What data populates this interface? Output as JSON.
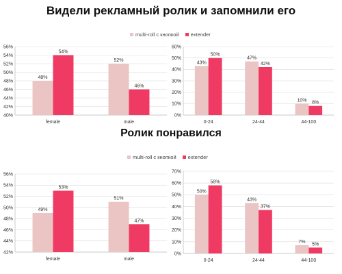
{
  "header": {
    "title": "Видели рекламный ролик и запомнили его",
    "title2": "Ролик понравился"
  },
  "legend": {
    "series1": "multi-roll с кнопкой",
    "series2": "extender",
    "color1": "#ebc4c4",
    "color2": "#ef3b63"
  },
  "chart_data": [
    {
      "type": "bar",
      "categories": [
        "female",
        "male"
      ],
      "series": [
        {
          "name": "multi-roll с кнопкой",
          "values": [
            48,
            52
          ],
          "labels": [
            "48%",
            "52%"
          ]
        },
        {
          "name": "extender",
          "values": [
            54,
            46
          ],
          "labels": [
            "54%",
            "46%"
          ]
        }
      ],
      "ylim": [
        40,
        56
      ],
      "yticks": [
        40,
        42,
        44,
        46,
        48,
        50,
        52,
        54,
        56
      ],
      "ytick_labels": [
        "40%",
        "42%",
        "44%",
        "46%",
        "48%",
        "50%",
        "52%",
        "54%",
        "56%"
      ],
      "grid": true
    },
    {
      "type": "bar",
      "categories": [
        "0-24",
        "24-44",
        "44-100"
      ],
      "series": [
        {
          "name": "multi-roll с кнопкой",
          "values": [
            43,
            47,
            10
          ],
          "labels": [
            "43%",
            "47%",
            "10%"
          ]
        },
        {
          "name": "extender",
          "values": [
            50,
            42,
            8
          ],
          "labels": [
            "50%",
            "42%",
            "8%"
          ]
        }
      ],
      "ylim": [
        0,
        60
      ],
      "yticks": [
        0,
        10,
        20,
        30,
        40,
        50,
        60
      ],
      "ytick_labels": [
        "0%",
        "10%",
        "20%",
        "30%",
        "40%",
        "50%",
        "60%"
      ],
      "grid": true
    },
    {
      "type": "bar",
      "categories": [
        "female",
        "male"
      ],
      "series": [
        {
          "name": "multi-roll с кнопкой",
          "values": [
            49,
            51
          ],
          "labels": [
            "49%",
            "51%"
          ]
        },
        {
          "name": "extender",
          "values": [
            53,
            47
          ],
          "labels": [
            "53%",
            "47%"
          ]
        }
      ],
      "ylim": [
        42,
        56
      ],
      "yticks": [
        42,
        44,
        46,
        48,
        50,
        52,
        54,
        56
      ],
      "ytick_labels": [
        "42%",
        "44%",
        "46%",
        "48%",
        "50%",
        "52%",
        "54%",
        "56%"
      ],
      "grid": true
    },
    {
      "type": "bar",
      "categories": [
        "0-24",
        "24-44",
        "44-100"
      ],
      "series": [
        {
          "name": "multi-roll с кнопкой",
          "values": [
            50,
            43,
            7
          ],
          "labels": [
            "50%",
            "43%",
            "7%"
          ]
        },
        {
          "name": "extender",
          "values": [
            58,
            37,
            5
          ],
          "labels": [
            "58%",
            "37%",
            "5%"
          ]
        }
      ],
      "ylim": [
        0,
        70
      ],
      "yticks": [
        0,
        10,
        20,
        30,
        40,
        50,
        60,
        70
      ],
      "ytick_labels": [
        "0%",
        "10%",
        "20%",
        "30%",
        "40%",
        "50%",
        "60%",
        "70%"
      ],
      "grid": true
    }
  ]
}
